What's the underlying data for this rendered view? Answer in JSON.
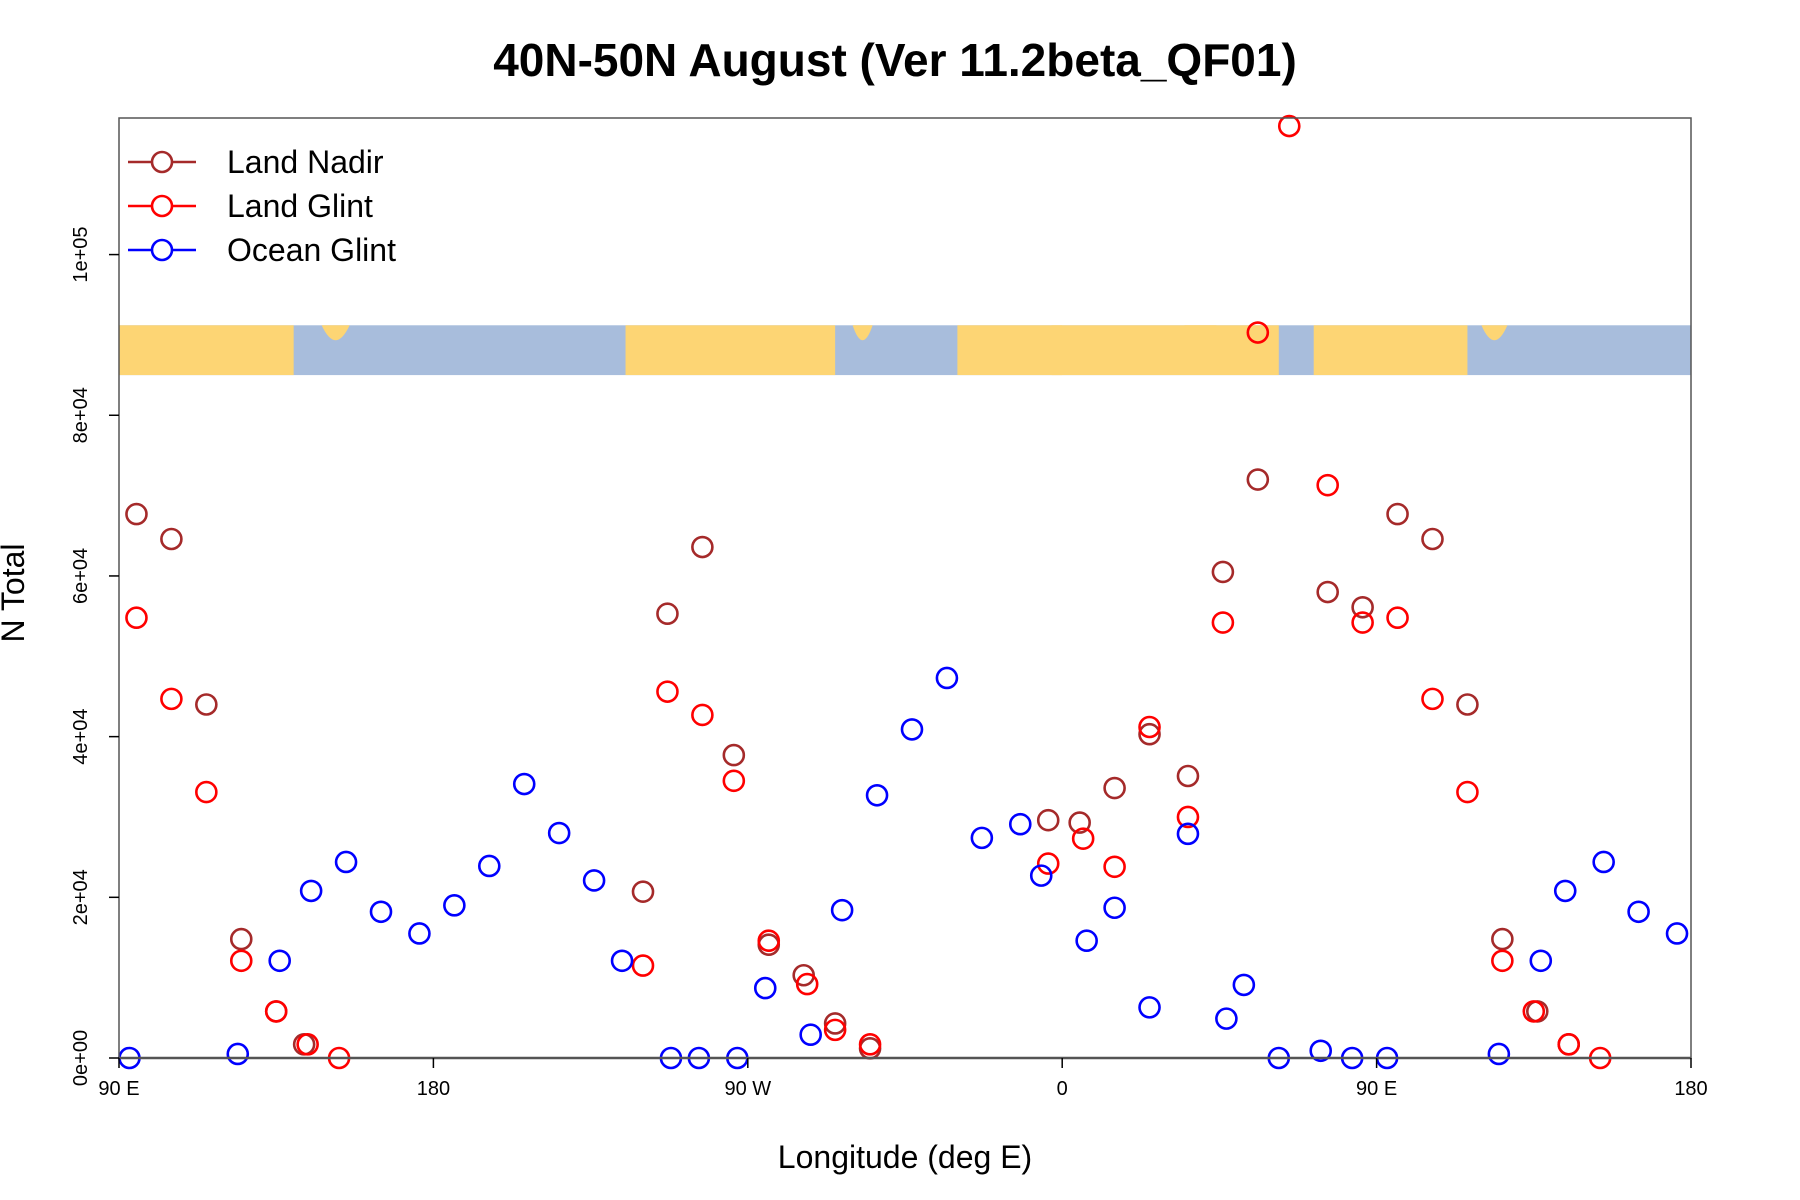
{
  "chart_data": {
    "type": "scatter",
    "title": "40N-50N August (Ver 11.2beta_QF01)",
    "xlabel": "Longitude (deg E)",
    "ylabel": "N Total",
    "xlim": [
      90,
      540
    ],
    "ylim": [
      0,
      117000
    ],
    "x_ticks": [
      {
        "value": 90,
        "label": "90 E"
      },
      {
        "value": 180,
        "label": "180"
      },
      {
        "value": 270,
        "label": "90 W"
      },
      {
        "value": 360,
        "label": "0"
      },
      {
        "value": 450,
        "label": "90 E"
      },
      {
        "value": 540,
        "label": "180"
      }
    ],
    "y_ticks": [
      {
        "value": 0,
        "label": "0e+00"
      },
      {
        "value": 20000,
        "label": "2e+04"
      },
      {
        "value": 40000,
        "label": "4e+04"
      },
      {
        "value": 60000,
        "label": "6e+04"
      },
      {
        "value": 80000,
        "label": "8e+04"
      },
      {
        "value": 100000,
        "label": "1e+05"
      }
    ],
    "legend_position": "top-left",
    "map_strip": {
      "y_range": [
        85000,
        91200
      ],
      "land_color": "#FDD574",
      "ocean_color": "#A8BDDC"
    },
    "series": [
      {
        "name": "Land Nadir",
        "color": "#A52A2A",
        "points": [
          [
            95,
            67700
          ],
          [
            105,
            64600
          ],
          [
            115,
            44000
          ],
          [
            125,
            14800
          ],
          [
            135,
            5800
          ],
          [
            143,
            1700
          ],
          [
            240,
            20700
          ],
          [
            247,
            55300
          ],
          [
            257,
            63600
          ],
          [
            266,
            37700
          ],
          [
            276,
            14100
          ],
          [
            286,
            10300
          ],
          [
            295,
            4300
          ],
          [
            305,
            1200
          ],
          [
            356,
            29600
          ],
          [
            365,
            29300
          ],
          [
            375,
            33600
          ],
          [
            385,
            40300
          ],
          [
            396,
            35100
          ],
          [
            406,
            60500
          ],
          [
            416,
            72000
          ],
          [
            436,
            58000
          ],
          [
            446,
            56100
          ],
          [
            456,
            67700
          ],
          [
            466,
            64600
          ],
          [
            476,
            44000
          ],
          [
            486,
            14800
          ],
          [
            496,
            5800
          ],
          [
            505,
            1700
          ]
        ]
      },
      {
        "name": "Land Glint",
        "color": "#FF0000",
        "points": [
          [
            95,
            54800
          ],
          [
            105,
            44700
          ],
          [
            115,
            33100
          ],
          [
            125,
            12100
          ],
          [
            135,
            5800
          ],
          [
            144,
            1700
          ],
          [
            153,
            0
          ],
          [
            240,
            11500
          ],
          [
            247,
            45600
          ],
          [
            257,
            42700
          ],
          [
            266,
            34500
          ],
          [
            276,
            14600
          ],
          [
            287,
            9200
          ],
          [
            295,
            3500
          ],
          [
            305,
            1700
          ],
          [
            356,
            24200
          ],
          [
            366,
            27300
          ],
          [
            375,
            23800
          ],
          [
            385,
            41200
          ],
          [
            396,
            30000
          ],
          [
            406,
            54200
          ],
          [
            416,
            90300
          ],
          [
            425,
            116000
          ],
          [
            436,
            71300
          ],
          [
            446,
            54200
          ],
          [
            456,
            54800
          ],
          [
            466,
            44700
          ],
          [
            476,
            33100
          ],
          [
            486,
            12100
          ],
          [
            495,
            5800
          ],
          [
            505,
            1700
          ],
          [
            514,
            0
          ]
        ]
      },
      {
        "name": "Ocean Glint",
        "color": "#0000FF",
        "points": [
          [
            93,
            0
          ],
          [
            124,
            500
          ],
          [
            136,
            12100
          ],
          [
            145,
            20800
          ],
          [
            155,
            24400
          ],
          [
            165,
            18200
          ],
          [
            176,
            15500
          ],
          [
            186,
            19000
          ],
          [
            196,
            23900
          ],
          [
            206,
            34100
          ],
          [
            216,
            28000
          ],
          [
            226,
            22100
          ],
          [
            234,
            12100
          ],
          [
            248,
            0
          ],
          [
            256,
            0
          ],
          [
            267,
            0
          ],
          [
            275,
            8700
          ],
          [
            288,
            2900
          ],
          [
            297,
            18400
          ],
          [
            307,
            32700
          ],
          [
            317,
            40900
          ],
          [
            327,
            47300
          ],
          [
            337,
            27400
          ],
          [
            348,
            29100
          ],
          [
            354,
            22700
          ],
          [
            367,
            14600
          ],
          [
            375,
            18700
          ],
          [
            385,
            6300
          ],
          [
            396,
            27900
          ],
          [
            407,
            4900
          ],
          [
            412,
            9100
          ],
          [
            422,
            0
          ],
          [
            434,
            900
          ],
          [
            443,
            0
          ],
          [
            453,
            0
          ],
          [
            485,
            500
          ],
          [
            497,
            12100
          ],
          [
            504,
            20800
          ],
          [
            515,
            24400
          ],
          [
            525,
            18200
          ],
          [
            536,
            15500
          ]
        ]
      }
    ]
  }
}
